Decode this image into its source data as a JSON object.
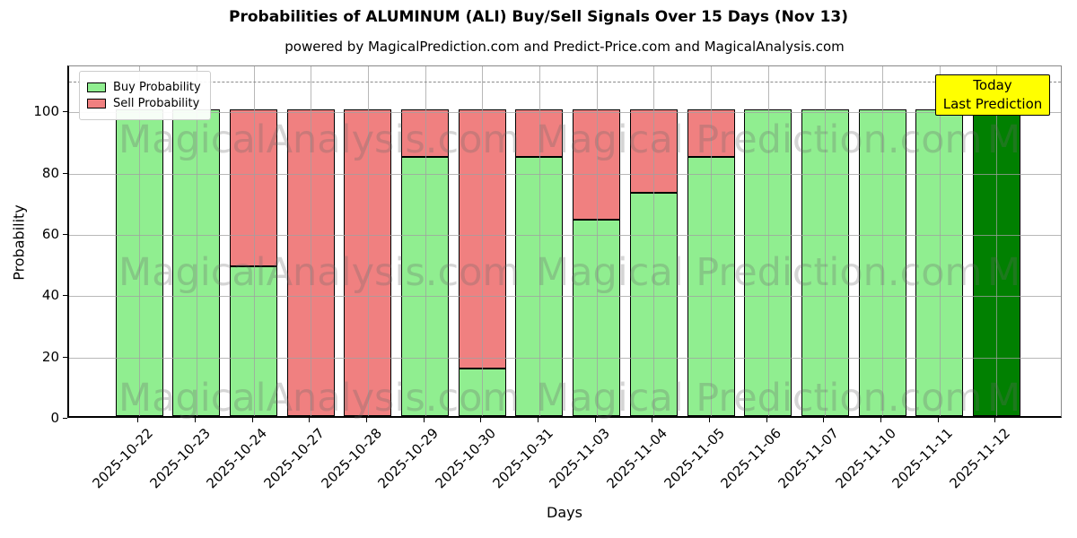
{
  "title": "Probabilities of ALUMINUM (ALI) Buy/Sell Signals Over 15 Days (Nov 13)",
  "subtitle": "powered by MagicalPrediction.com and Predict-Price.com and MagicalAnalysis.com",
  "axes": {
    "x_label": "Days",
    "y_label": "Probability",
    "y_ticks": [
      0,
      20,
      40,
      60,
      80,
      100
    ],
    "ylim": [
      0,
      115
    ],
    "dashed_line_y": 110,
    "grid": true
  },
  "legend": {
    "position": "upper-left",
    "entries": [
      {
        "label": "Buy Probability",
        "color": "#90EE90"
      },
      {
        "label": "Sell Probability",
        "color": "#F08080"
      }
    ]
  },
  "annotation_box": {
    "line1": "Today",
    "line2": "Last Prediction",
    "bg_color": "#FFFF00"
  },
  "watermarks": {
    "left_text": "MagicalAnalysis.com",
    "right_text": "Magical Prediction.com",
    "edge_text": "M",
    "rows": 3
  },
  "chart_data": {
    "type": "bar",
    "stacked": true,
    "categories": [
      "2025-10-22",
      "2025-10-23",
      "2025-10-24",
      "2025-10-27",
      "2025-10-28",
      "2025-10-29",
      "2025-10-30",
      "2025-10-31",
      "2025-11-03",
      "2025-11-04",
      "2025-11-05",
      "2025-11-06",
      "2025-11-07",
      "2025-11-10",
      "2025-11-11",
      "2025-11-12"
    ],
    "series": [
      {
        "name": "Buy Probability",
        "color": "#90EE90",
        "values": [
          100,
          100,
          49,
          0,
          0,
          84.5,
          15.5,
          84.5,
          64,
          73,
          84.5,
          100,
          100,
          100,
          100,
          100
        ]
      },
      {
        "name": "Sell Probability",
        "color": "#F08080",
        "values": [
          0,
          0,
          51,
          100,
          100,
          15.5,
          84.5,
          15.5,
          36,
          27,
          15.5,
          0,
          0,
          0,
          0,
          0
        ]
      }
    ],
    "today_index": 15,
    "today_buy_color": "#018001",
    "edge_color": "#000000"
  }
}
